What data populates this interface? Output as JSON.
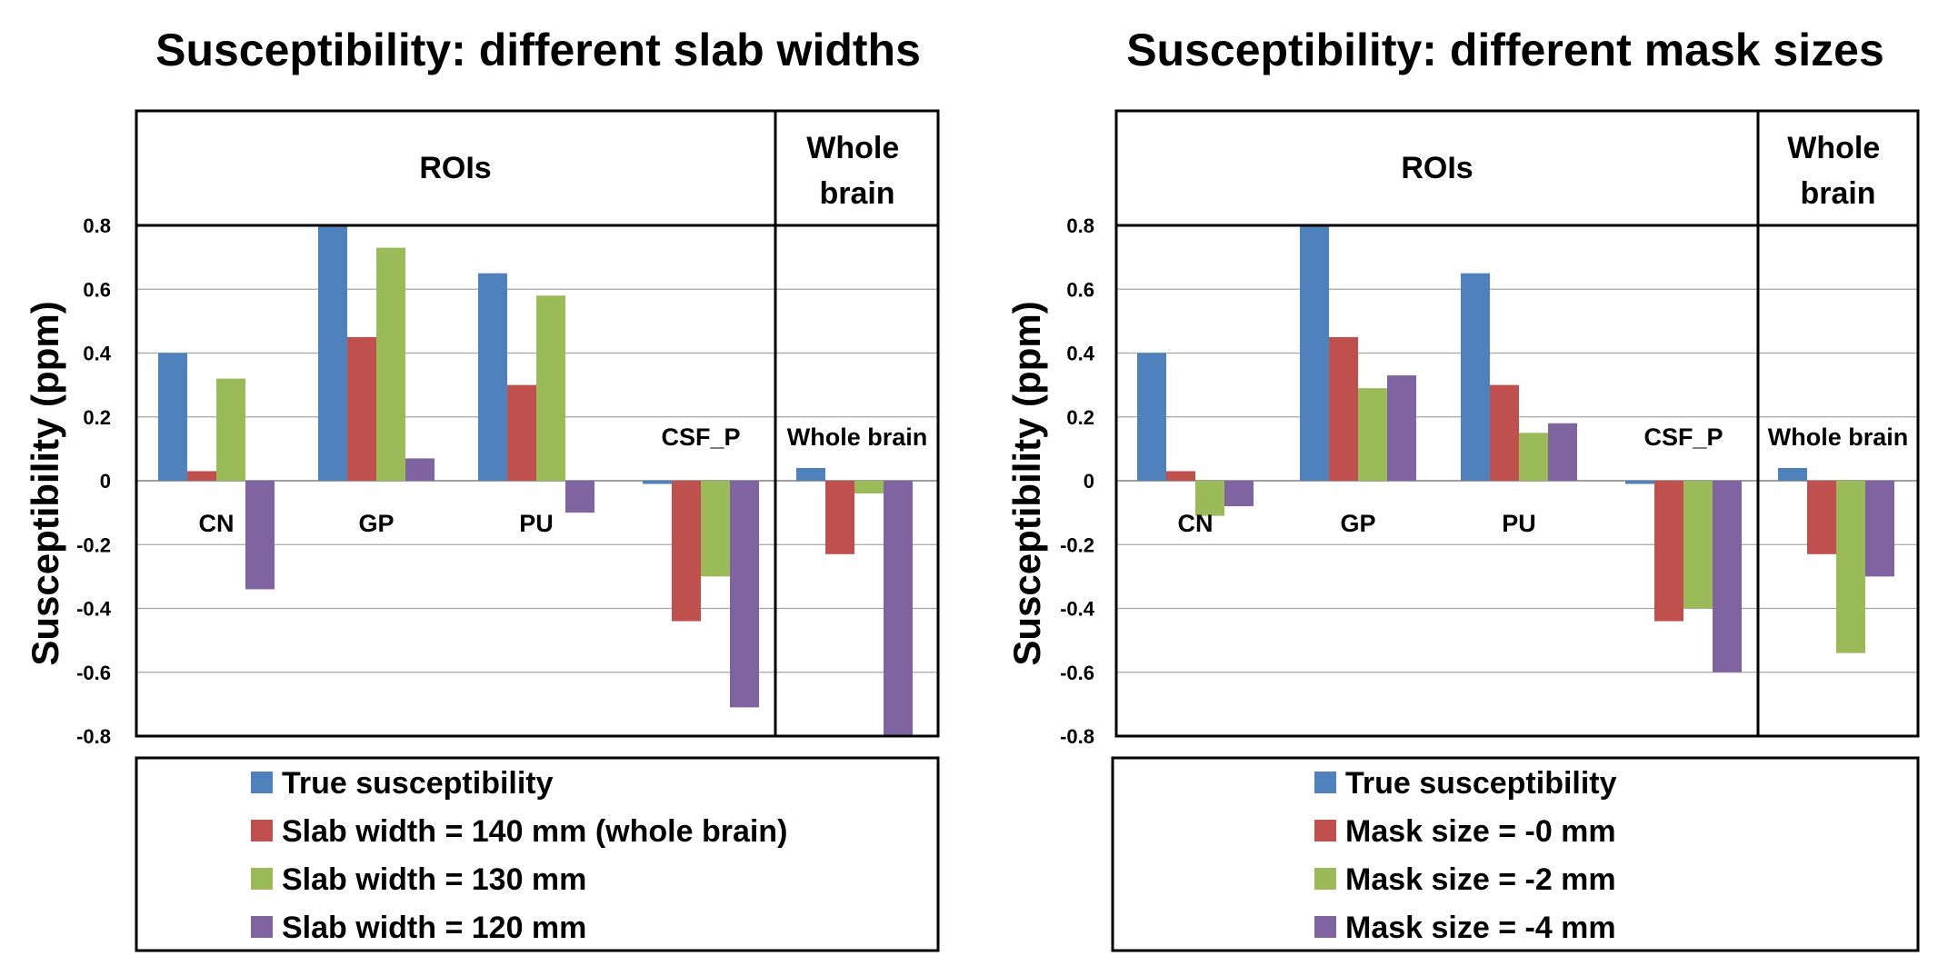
{
  "colors": {
    "true": "#4F81BD",
    "red": "#C0504D",
    "green": "#9BBB59",
    "purple": "#8064A2",
    "grid": "#A6A6A6"
  },
  "chart_data": [
    {
      "type": "bar",
      "title": "Susceptibility: different slab widths",
      "ylabel": "Susceptibility  (ppm)",
      "ylim": [
        -0.8,
        0.8
      ],
      "yticks": [
        "0.8",
        "0.6",
        "0.4",
        "0.2",
        "0",
        "-0.2",
        "-0.4",
        "-0.6",
        "-0.8"
      ],
      "region_labels": [
        "ROIs",
        "Whole brain"
      ],
      "categories": [
        "CN",
        "GP",
        "PU",
        "CSF_P",
        "Whole brain"
      ],
      "series": [
        {
          "name": "True susceptibility",
          "color": "#4F81BD",
          "values": [
            0.4,
            0.8,
            0.65,
            -0.01,
            0.04
          ]
        },
        {
          "name": "Slab width = 140 mm (whole brain)",
          "color": "#C0504D",
          "values": [
            0.03,
            0.45,
            0.3,
            -0.44,
            -0.23
          ]
        },
        {
          "name": "Slab width = 130 mm",
          "color": "#9BBB59",
          "values": [
            0.32,
            0.73,
            0.58,
            -0.3,
            -0.04
          ]
        },
        {
          "name": "Slab width = 120 mm",
          "color": "#8064A2",
          "values": [
            -0.34,
            0.07,
            -0.1,
            -0.71,
            -0.8
          ]
        }
      ]
    },
    {
      "type": "bar",
      "title": "Susceptibility: different mask sizes",
      "ylabel": "Susceptibility  (ppm)",
      "ylim": [
        -0.8,
        0.8
      ],
      "yticks": [
        "0.8",
        "0.6",
        "0.4",
        "0.2",
        "0",
        "-0.2",
        "-0.4",
        "-0.6",
        "-0.8"
      ],
      "region_labels": [
        "ROIs",
        "Whole brain"
      ],
      "categories": [
        "CN",
        "GP",
        "PU",
        "CSF_P",
        "Whole brain"
      ],
      "series": [
        {
          "name": "True susceptibility",
          "color": "#4F81BD",
          "values": [
            0.4,
            0.8,
            0.65,
            -0.01,
            0.04
          ]
        },
        {
          "name": "Mask size = -0 mm",
          "color": "#C0504D",
          "values": [
            0.03,
            0.45,
            0.3,
            -0.44,
            -0.23
          ]
        },
        {
          "name": "Mask size = -2 mm",
          "color": "#9BBB59",
          "values": [
            -0.11,
            0.29,
            0.15,
            -0.4,
            -0.54
          ]
        },
        {
          "name": "Mask size = -4 mm",
          "color": "#8064A2",
          "values": [
            -0.08,
            0.33,
            0.18,
            -0.6,
            -0.3
          ]
        }
      ]
    }
  ]
}
